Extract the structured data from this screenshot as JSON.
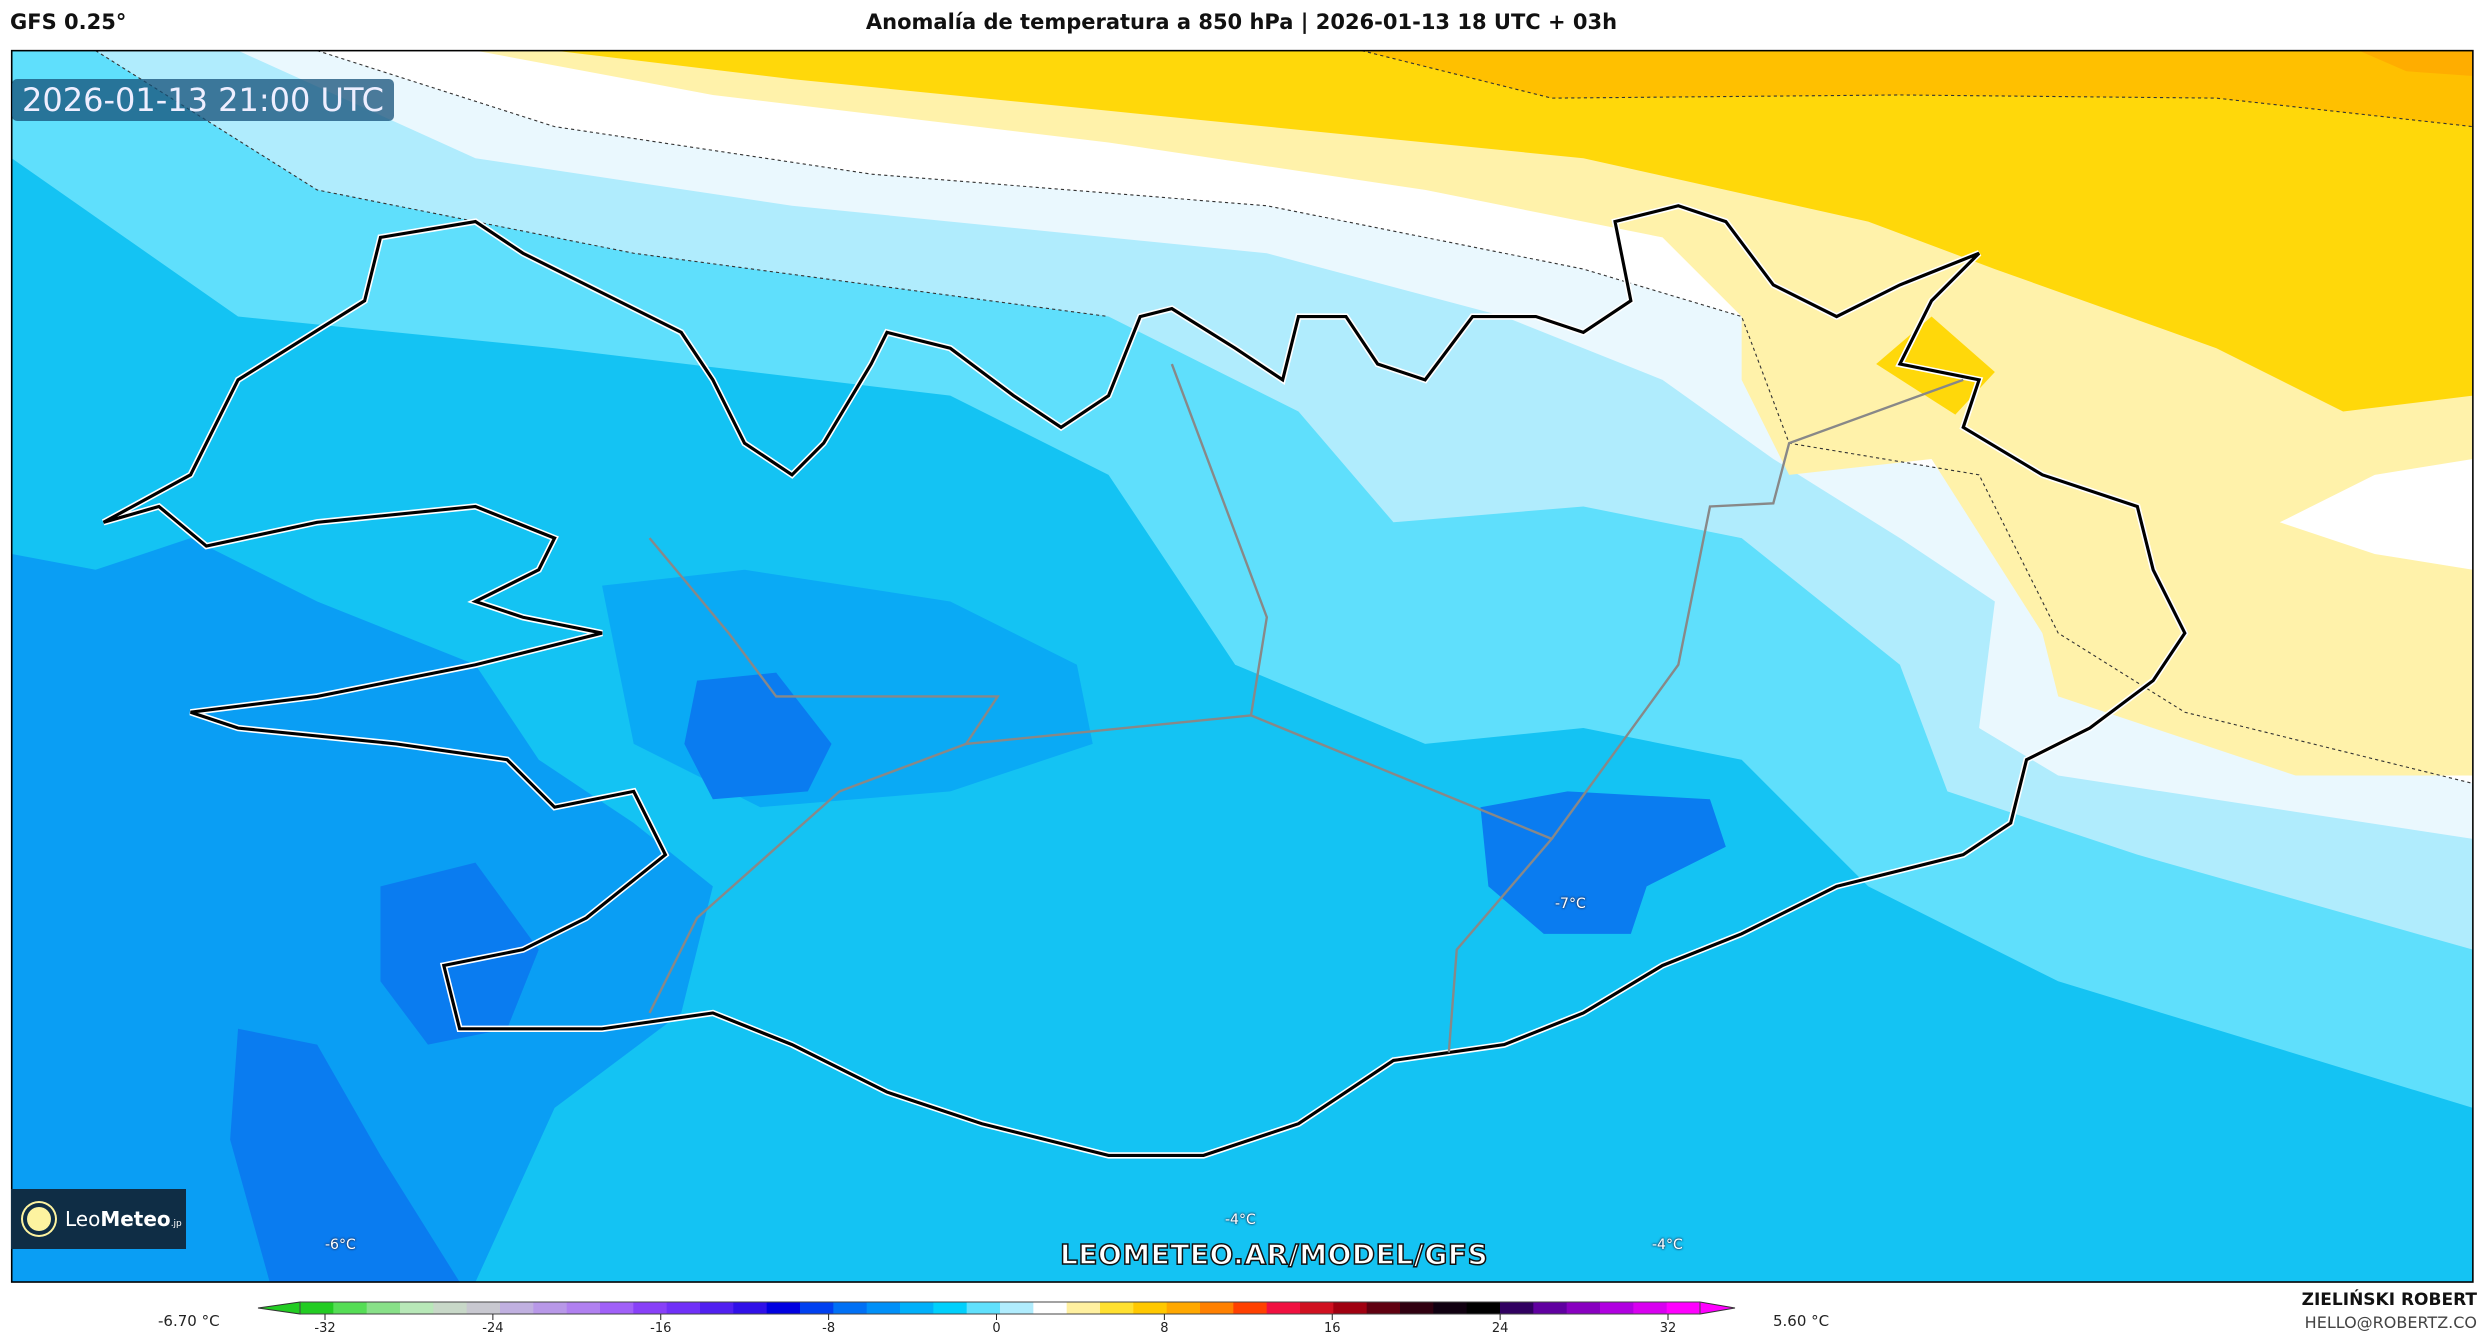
{
  "header": {
    "model": "GFS 0.25°",
    "title": "Anomalía de temperatura a 850 hPa | 2026-01-13 18 UTC + 03h"
  },
  "map": {
    "valid_time": "2026-01-13 21:00 UTC",
    "watermark": "LEOMETEO.AR/MODEL/GFS",
    "logo": {
      "text_light": "Leo",
      "text_bold": "Meteo",
      "suffix": ".jp"
    },
    "labels": [
      {
        "text": "-7°C"
      },
      {
        "text": "-6°C"
      },
      {
        "text": "-4°C"
      },
      {
        "text": "-4°C"
      }
    ],
    "fill_colors": {
      "darkest_blue": "#0a7cf0",
      "dark_blue": "#0a9ef4",
      "blue": "#14c3f3",
      "cyan": "#5fdffc",
      "pale_cyan": "#b0ecfd",
      "very_pale": "#eaf8fe",
      "white": "#ffffff",
      "pale_yellow": "#fff2aa",
      "yellow": "#ffd80a",
      "orange": "#ffc000",
      "dark_orange": "#ffad00"
    }
  },
  "colorbar": {
    "min_value": "-6.70 °C",
    "max_value": "5.60 °C",
    "ticks": [
      "-32",
      "-24",
      "-16",
      "-8",
      "0",
      "8",
      "16",
      "24",
      "32"
    ],
    "colors": [
      "#22cc22",
      "#55dd55",
      "#88e088",
      "#b8e8b8",
      "#c8d8c8",
      "#c8c8d0",
      "#c0b0e0",
      "#b898e8",
      "#b080f0",
      "#a060f8",
      "#8840f8",
      "#7030f8",
      "#5020f0",
      "#3010e8",
      "#0000e0",
      "#0040f0",
      "#0070f5",
      "#0090f8",
      "#00b0fa",
      "#00d0fc",
      "#60e0fc",
      "#b0ecfd",
      "#ffffff",
      "#fff0a0",
      "#ffe030",
      "#ffc800",
      "#ffa800",
      "#ff8000",
      "#ff4000",
      "#f01040",
      "#d01020",
      "#a00010",
      "#600010",
      "#300010",
      "#100010",
      "#000000",
      "#300060",
      "#6000a0",
      "#8800c0",
      "#b000e0",
      "#d800f0",
      "#ff00ff"
    ]
  },
  "footer": {
    "author": "ZIELIŃSKI ROBERT",
    "email": "HELLO@ROBERTZ.CO"
  }
}
